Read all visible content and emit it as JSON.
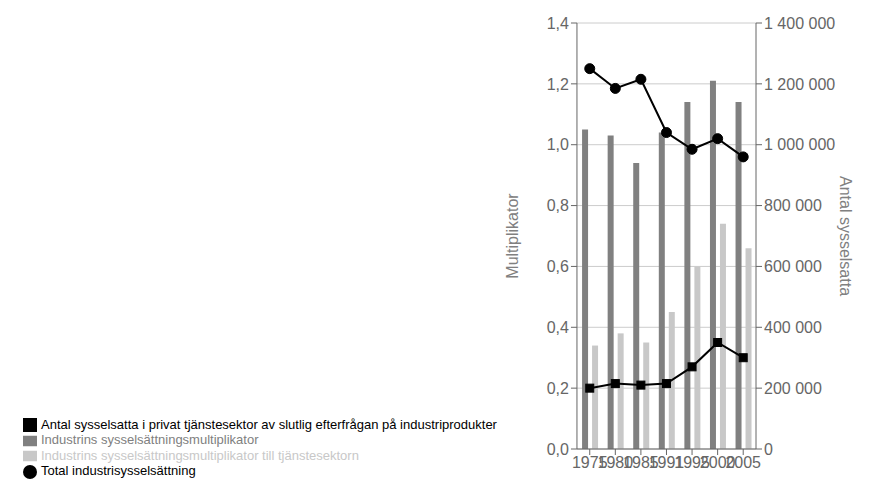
{
  "chart_data": {
    "type": "bar",
    "categories": [
      "1975",
      "1980",
      "1985",
      "1991",
      "1995",
      "2000",
      "2005"
    ],
    "series": [
      {
        "name": "Industrins sysselsättningsmultiplikator",
        "type": "bar",
        "color": "#808080",
        "values": [
          1.05,
          1.03,
          0.94,
          1.04,
          1.14,
          1.21,
          1.14
        ]
      },
      {
        "name": "Industrins sysselsättningsmultiplikator till tjänstesektorn",
        "type": "bar",
        "color": "#c8c8c8",
        "values": [
          0.34,
          0.38,
          0.35,
          0.45,
          0.6,
          0.74,
          0.66
        ]
      },
      {
        "name": "Antal sysselsatta i privat tjänstesektor av slutlig efterfrågan på industriprodukter",
        "type": "line",
        "axis": "y2",
        "color": "#000000",
        "marker": "square",
        "values": [
          200000,
          215000,
          210000,
          215000,
          270000,
          350000,
          300000
        ]
      },
      {
        "name": "Total industrisysselsättning",
        "type": "line",
        "axis": "y2",
        "color": "#000000",
        "marker": "circle",
        "values": [
          1250000,
          1185000,
          1215000,
          1040000,
          985000,
          1020000,
          960000
        ]
      }
    ],
    "ylabel": "Multiplikator",
    "y2label": "Antal sysselsatta",
    "ylim": [
      0.0,
      1.4
    ],
    "yticks": [
      {
        "value": 0.0,
        "label": "0,0"
      },
      {
        "value": 0.2,
        "label": "0,2"
      },
      {
        "value": 0.4,
        "label": "0,4"
      },
      {
        "value": 0.6,
        "label": "0,6"
      },
      {
        "value": 0.8,
        "label": "0,8"
      },
      {
        "value": 1.0,
        "label": "1,0"
      },
      {
        "value": 1.2,
        "label": "1,2"
      },
      {
        "value": 1.4,
        "label": "1,4"
      }
    ],
    "y2lim": [
      0,
      1400000
    ],
    "y2ticks": [
      0,
      {
        "value": 200000,
        "label": "200 000"
      },
      {
        "value": 400000,
        "label": "400 000"
      },
      {
        "value": 600000,
        "label": "600 000"
      },
      {
        "value": 800000,
        "label": "800 000"
      },
      {
        "value": 1000000,
        "label": "1 000 000"
      },
      {
        "value": 1200000,
        "label": "1 200 000"
      },
      {
        "value": 1400000,
        "label": "1 400 000"
      }
    ],
    "grid": true,
    "legend": "bottom"
  }
}
